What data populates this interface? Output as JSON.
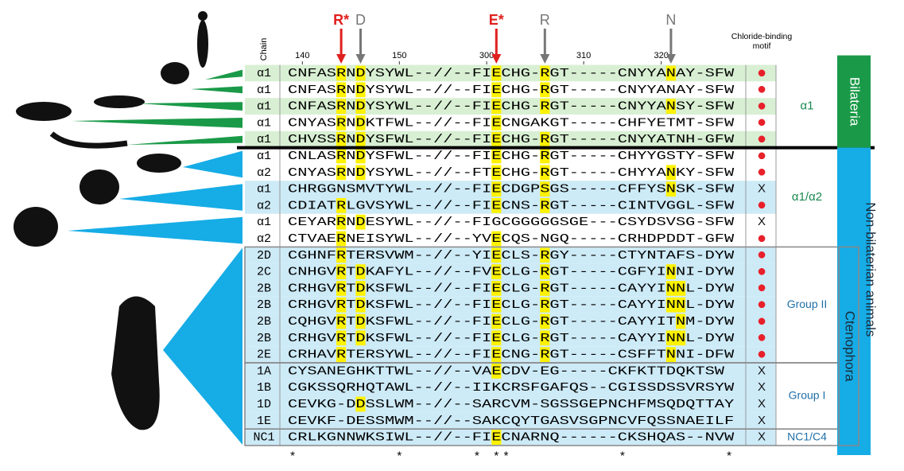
{
  "header": {
    "chain": "Chain",
    "motif": "Chloride-binding motif"
  },
  "markers": [
    {
      "label": "R*",
      "col": 5,
      "color": "#e0201e"
    },
    {
      "label": "D",
      "col": 7,
      "color": "#777777"
    },
    {
      "label": "E*",
      "col": 21,
      "color": "#e0201e"
    },
    {
      "label": "R",
      "col": 26,
      "color": "#777777"
    },
    {
      "label": "N",
      "col": 39,
      "color": "#777777"
    }
  ],
  "positions": [
    {
      "label": "140",
      "col": 1
    },
    {
      "label": "150",
      "col": 11
    },
    {
      "label": "300",
      "col": 20
    },
    {
      "label": "310",
      "col": 30
    },
    {
      "label": "320",
      "col": 38
    }
  ],
  "rows": [
    {
      "chain": "α1",
      "seq": "CNFASRNDYSYWL--//--FIECHG-RGT-----CNYYANAY-SFW",
      "motif": "●",
      "hl": [
        5,
        7,
        21,
        26,
        39
      ],
      "bg": "#d8efd3"
    },
    {
      "chain": "α1",
      "seq": "CNFASRNDYSYWL--//--FIECHG-RGT-----CNYYANAY-SFW",
      "motif": "●",
      "hl": [
        5,
        7,
        21,
        26
      ],
      "bg": "#ffffff"
    },
    {
      "chain": "α1",
      "seq": "CNFASRNDYSYWL--//--FIECHG-RGT-----CNYYANSY-SFW",
      "motif": "●",
      "hl": [
        5,
        7,
        21,
        26,
        39
      ],
      "bg": "#d8efd3"
    },
    {
      "chain": "α1",
      "seq": "CNYASRNDKTFWL--//--FIECNGAKGT-----CHFYETMT-SFW",
      "motif": "●",
      "hl": [
        5,
        7,
        21
      ],
      "bg": "#ffffff"
    },
    {
      "chain": "α1",
      "seq": "CHVSSRNDYSFWL--//--FIECHG-RGT-----CNYYATNH-GFW",
      "motif": "●",
      "hl": [
        5,
        7,
        21,
        26
      ],
      "bg": "#d8efd3"
    },
    {
      "chain": "α1",
      "seq": "CNLASRNDYSFWL--//--FIECHG-RGT-----CHYYGSTY-SFW",
      "motif": "●",
      "hl": [
        5,
        7,
        21,
        26
      ],
      "bg": "#ffffff"
    },
    {
      "chain": "α2",
      "seq": "CNYASRNDYSYWL--//--FTECHG-RGT-----CHYYANKY-SFW",
      "motif": "●",
      "hl": [
        5,
        7,
        21,
        26,
        39
      ],
      "bg": "#ffffff"
    },
    {
      "chain": "α1",
      "seq": "CHRGGNSMVTYWL--//--FIECDGPSGS-----CFFYSNSK-SFW",
      "motif": "X",
      "hl": [
        21,
        26,
        39
      ],
      "bg": "#cdeaf7"
    },
    {
      "chain": "α2",
      "seq": "CDIATRLGVSYWL--//--FIECNS-RGT-----CINTVGGL-SFW",
      "motif": "●",
      "hl": [
        5,
        21,
        26
      ],
      "bg": "#cdeaf7"
    },
    {
      "chain": "α1",
      "seq": "CEYARRNDESYWL--//--FIGCGGGGGSGE---CSYDSVSG-SFW",
      "motif": "X",
      "hl": [
        5,
        7
      ],
      "bg": "#ffffff"
    },
    {
      "chain": "α2",
      "seq": "CTVAERNEISYWL--//--YVECQS-NGQ-----CRHDPDDT-GFW",
      "motif": "●",
      "hl": [
        5,
        21
      ],
      "bg": "#ffffff"
    },
    {
      "chain": "2D",
      "seq": "CGHNFRTERSVWM--//--YIECLS-RGY-----CTYNTAFS-DYW",
      "motif": "●",
      "hl": [
        5,
        21,
        26
      ],
      "bg": "#cdeaf7"
    },
    {
      "chain": "2C",
      "seq": "CNHGVRTDKAFYL--//--FVECLG-RGT-----CGFYINNI-DYW",
      "motif": "●",
      "hl": [
        5,
        7,
        21,
        26,
        39
      ],
      "bg": "#cdeaf7"
    },
    {
      "chain": "2B",
      "seq": "CRHGVRTDKSFWL--//--FIECLG-RGT-----CAYYINNL-DYW",
      "motif": "●",
      "hl": [
        5,
        7,
        21,
        26,
        39,
        40
      ],
      "bg": "#cdeaf7"
    },
    {
      "chain": "2B",
      "seq": "CRHGVRTDKSFWL--//--FIECLG-RGT-----CAYYINNL-DYW",
      "motif": "●",
      "hl": [
        5,
        7,
        21,
        26,
        39,
        40
      ],
      "bg": "#cdeaf7"
    },
    {
      "chain": "2B",
      "seq": "CQHGVRTDKSFWL--//--FIECLG-RGT-----CAYYITNM-DYW",
      "motif": "●",
      "hl": [
        5,
        7,
        21,
        26,
        40
      ],
      "bg": "#cdeaf7"
    },
    {
      "chain": "2B",
      "seq": "CRHGVRTDKSFWL--//--FIECLG-RGT-----CAYYINNL-DYW",
      "motif": "●",
      "hl": [
        5,
        7,
        21,
        26,
        39,
        40
      ],
      "bg": "#cdeaf7"
    },
    {
      "chain": "2E",
      "seq": "CRHAVRTERSYWL--//--FIECNG-RGT-----CSFFTNNI-DFW",
      "motif": "●",
      "hl": [
        5,
        21,
        26,
        39
      ],
      "bg": "#cdeaf7"
    },
    {
      "chain": "1A",
      "seq": "CYSANEGHKTTWL--//--VAECDV-EG-----CKFKTTDQKTSW",
      "motif": "X",
      "hl": [
        21
      ],
      "bg": "#cdeaf7"
    },
    {
      "chain": "1B",
      "seq": "CGKSSQRHQTAWL--//--IIKCRSFGAFQS--CGISSDSSVRSYW",
      "motif": "X",
      "hl": [],
      "bg": "#cdeaf7"
    },
    {
      "chain": "1D",
      "seq": "CEVKG-DDSSLWM--//--SARCVM-SGSSGEPNCHFMSQDQTTAY",
      "motif": "X",
      "hl": [
        7
      ],
      "bg": "#cdeaf7"
    },
    {
      "chain": "1E",
      "seq": "CEVKF-DESSMWM--//--SAKCQYTGASVSGPNCVFQSSNAEILF",
      "motif": "X",
      "hl": [],
      "bg": "#cdeaf7"
    },
    {
      "chain": "NC1",
      "seq": "CRLKGNNWKSIWL--//--FIECNARNQ------CKSHQAS--NVW",
      "motif": "X",
      "hl": [
        21
      ],
      "bg": "#cdeaf7"
    }
  ],
  "asterisks": [
    {
      "label": "*",
      "col": 0
    },
    {
      "label": "*",
      "col": 11
    },
    {
      "label": "*",
      "col": 19
    },
    {
      "label": "*",
      "col": 21
    },
    {
      "label": "*",
      "col": 22
    },
    {
      "label": "*",
      "col": 34
    },
    {
      "label": "*",
      "col": 45
    }
  ],
  "groups": [
    {
      "label": "α1",
      "from": 0,
      "to": 4
    },
    {
      "label": "α1/α2",
      "from": 5,
      "to": 10
    },
    {
      "label": "Group II",
      "from": 11,
      "to": 17
    },
    {
      "label": "Group I",
      "from": 18,
      "to": 21
    },
    {
      "label": "NC1/C4",
      "from": 22,
      "to": 22
    }
  ],
  "clades": [
    {
      "label": "Bilateria",
      "from": 0,
      "to": 4,
      "color": "#1a9a48"
    },
    {
      "label": "Non-bilaterian animals",
      "from": 5,
      "to": 22,
      "color": "#16ace6"
    },
    {
      "label": "Ctenophora",
      "from": 11,
      "to": 22,
      "color": "#16ace6"
    }
  ]
}
